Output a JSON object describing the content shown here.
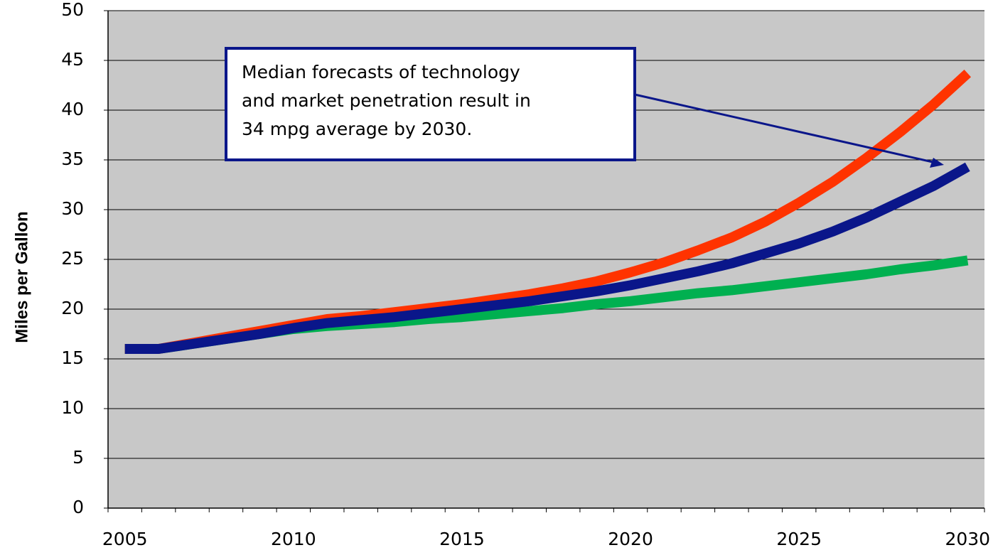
{
  "chart_data": {
    "type": "line",
    "y_label": "Miles per Gallon",
    "annotation": [
      "Median forecasts of technology",
      "and market penetration result in",
      "34 mpg average by 2030."
    ],
    "categories": [
      2005,
      null,
      null,
      null,
      null,
      2010,
      null,
      null,
      null,
      null,
      2015,
      null,
      null,
      null,
      null,
      2020,
      null,
      null,
      null,
      null,
      2025,
      null,
      null,
      null,
      null,
      2030
    ],
    "series": [
      {
        "color": "#00b050",
        "values": [
          16,
          16,
          16.5,
          17,
          17.5,
          18,
          18.3,
          18.5,
          18.7,
          19,
          19.2,
          19.5,
          19.8,
          20.1,
          20.5,
          20.8,
          21.2,
          21.6,
          21.9,
          22.3,
          22.7,
          23.1,
          23.5,
          24,
          24.4,
          24.9
        ]
      },
      {
        "color": "#ff3300",
        "values": [
          16,
          16,
          16.6,
          17.2,
          17.8,
          18.4,
          19,
          19.3,
          19.7,
          20.1,
          20.5,
          21,
          21.5,
          22.1,
          22.8,
          23.7,
          24.7,
          25.9,
          27.2,
          28.8,
          30.7,
          32.8,
          35.2,
          37.8,
          40.6,
          43.7
        ]
      },
      {
        "color": "#0a168a",
        "values": [
          16,
          16,
          16.5,
          17,
          17.5,
          18.1,
          18.6,
          18.9,
          19.2,
          19.6,
          20,
          20.4,
          20.8,
          21.3,
          21.8,
          22.4,
          23.1,
          23.8,
          24.6,
          25.6,
          26.6,
          27.8,
          29.2,
          30.8,
          32.4,
          34.3
        ]
      }
    ],
    "ylim": [
      0,
      50
    ],
    "yticks": [
      0,
      5,
      10,
      15,
      20,
      25,
      30,
      35,
      40,
      45,
      50
    ],
    "grid": true
  }
}
